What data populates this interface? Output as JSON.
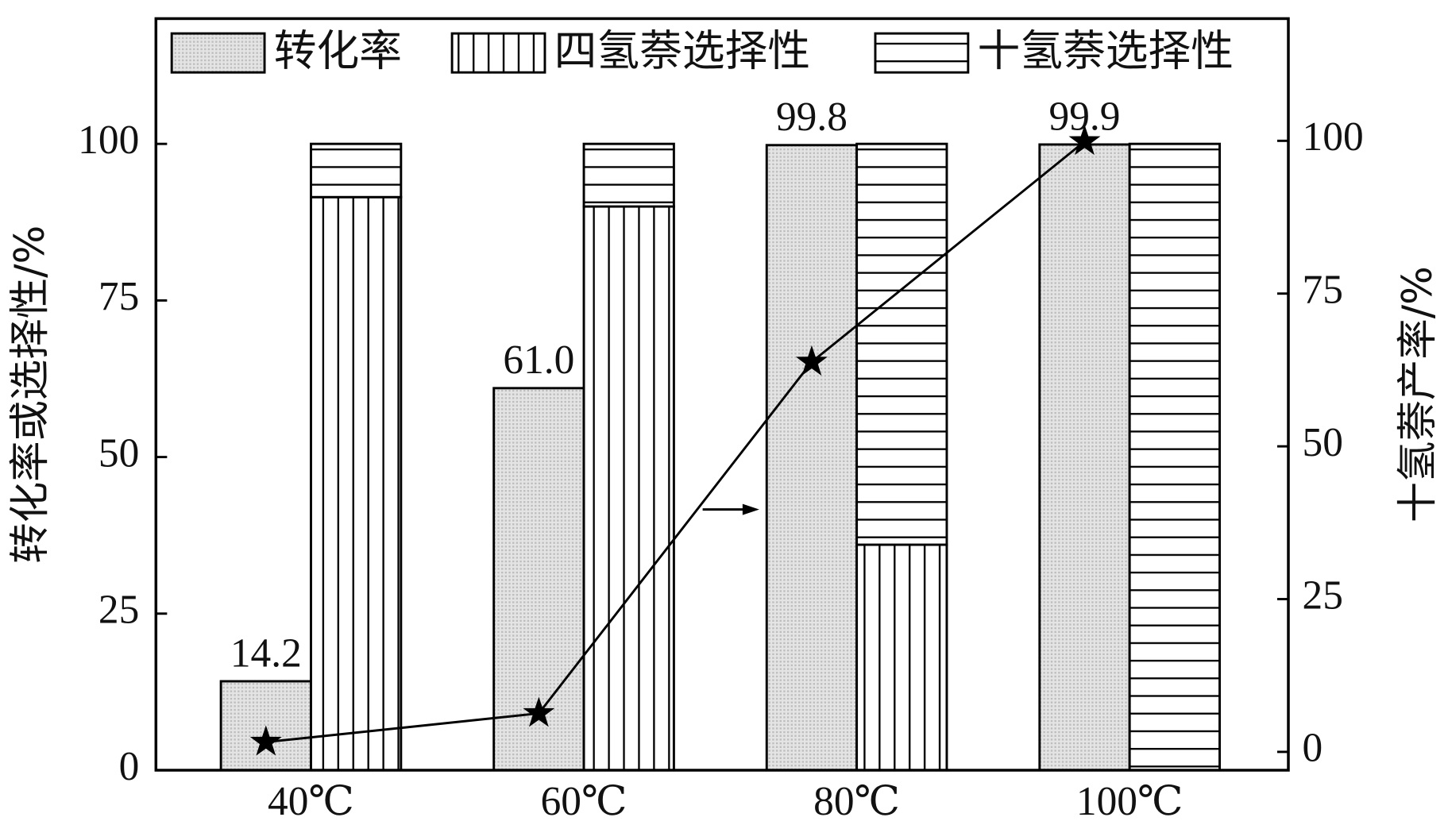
{
  "chart_data": {
    "type": "bar",
    "categories": [
      "40℃",
      "60℃",
      "80℃",
      "100℃"
    ],
    "y_label": "转化率或选择性/%",
    "y2_label": "十氢萘产率/%",
    "ylim": [
      0,
      120
    ],
    "yticks": [
      0,
      25,
      50,
      75,
      100
    ],
    "y2lim": [
      -3,
      120
    ],
    "y2ticks": [
      0,
      25,
      50,
      75,
      100
    ],
    "series": [
      {
        "name": "转化率",
        "values": [
          14.2,
          61.0,
          99.8,
          99.9
        ],
        "value_labels": [
          "14.2",
          "61.0",
          "99.8",
          "99.9"
        ],
        "pattern": "dots"
      },
      {
        "name": "四氢萘选择性",
        "values": [
          91.5,
          90,
          36,
          0
        ],
        "pattern": "vertical",
        "stack": "selectivity"
      },
      {
        "name": "十氢萘选择性",
        "values": [
          8.5,
          10,
          64,
          100
        ],
        "pattern": "horizontal",
        "stack": "selectivity"
      },
      {
        "values": [
          1.6,
          6.3,
          63.8,
          99.9
        ],
        "axis": "y2",
        "type": "line",
        "marker": "star",
        "color": "#000000"
      }
    ]
  }
}
